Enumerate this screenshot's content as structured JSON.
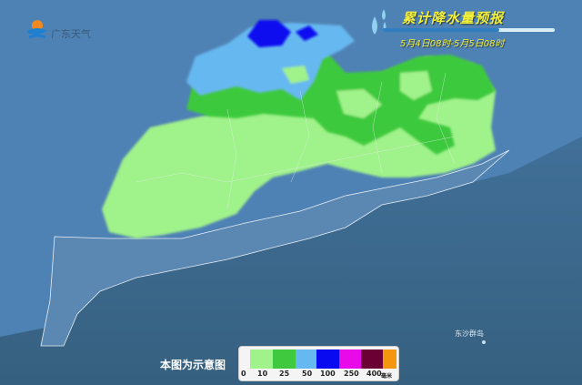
{
  "header": {
    "logo_text": "广东天气",
    "title": "累计降水量预报",
    "subtitle": "5月4日08时-5月5日08时",
    "progress": 0.68
  },
  "map": {
    "label_dongsha": "东沙群岛",
    "note": "本图为示意图"
  },
  "legend": {
    "colors": [
      "#a0f28a",
      "#3ec93e",
      "#66b8f0",
      "#0a0af0",
      "#e80ae8",
      "#6b0035",
      "#f5960f"
    ],
    "ticks": [
      "0",
      "10",
      "25",
      "50",
      "100",
      "250",
      "400"
    ],
    "unit": "毫米"
  }
}
